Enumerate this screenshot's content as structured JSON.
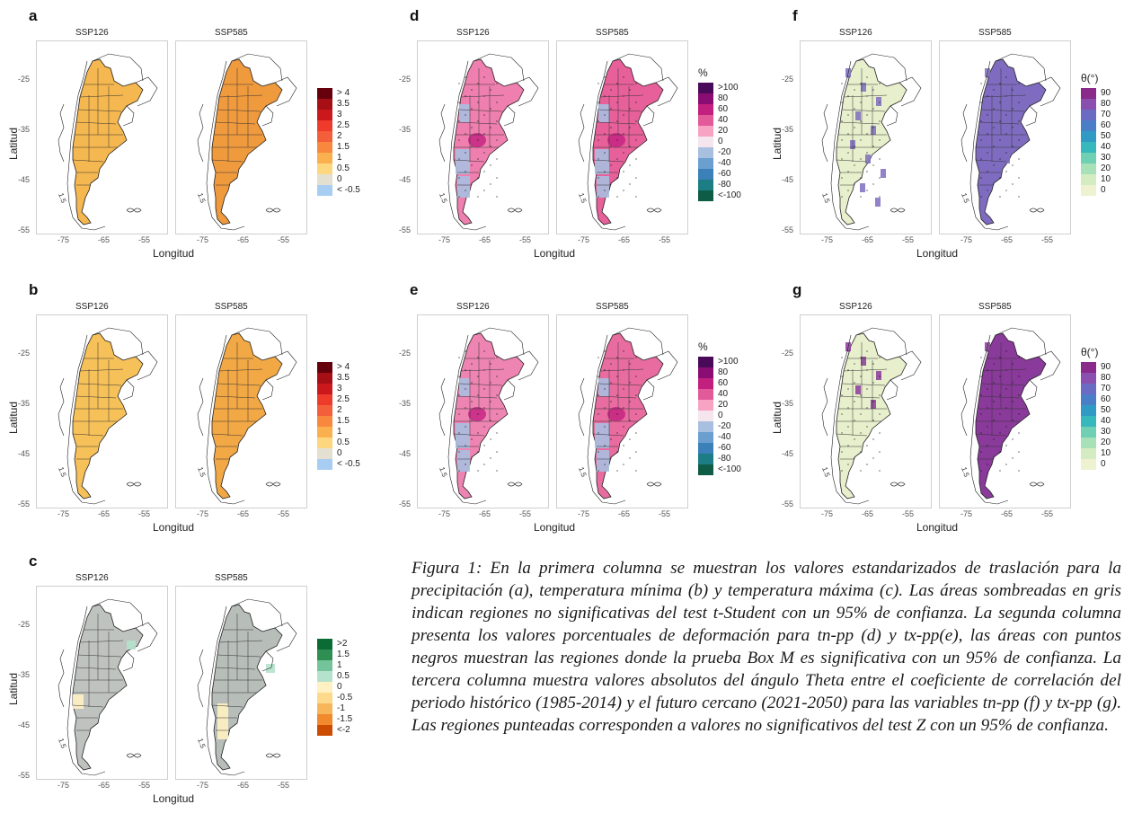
{
  "panels": [
    {
      "id": "a",
      "label": "a",
      "maps": [
        "SSP126",
        "SSP585"
      ],
      "fill": "#f5b74f",
      "fill2": "#f09a3e",
      "grey": false,
      "dots": false,
      "xticks": [
        "-75",
        "-65",
        "-55"
      ],
      "yticks": [
        "-25",
        "-35",
        "-45",
        "-55"
      ],
      "xlabel": "Longitud",
      "ylabel": "Latitud",
      "legend": {
        "title": "",
        "items": [
          {
            "label": "> 4",
            "color": "#67000d"
          },
          {
            "label": "3.5",
            "color": "#a50f15"
          },
          {
            "label": "3",
            "color": "#cb181d"
          },
          {
            "label": "2.5",
            "color": "#ef3b2c"
          },
          {
            "label": "2",
            "color": "#f35f3a"
          },
          {
            "label": "1.5",
            "color": "#f8883d"
          },
          {
            "label": "1",
            "color": "#fbb04f"
          },
          {
            "label": "0.5",
            "color": "#fdd77f"
          },
          {
            "label": "0",
            "color": "#e3e0d2"
          },
          {
            "label": "< -0.5",
            "color": "#a8cdf2"
          }
        ]
      }
    },
    {
      "id": "b",
      "label": "b",
      "maps": [
        "SSP126",
        "SSP585"
      ],
      "fill": "#f7c15a",
      "fill2": "#f2a845",
      "grey": false,
      "dots": false,
      "xticks": [
        "-75",
        "-65",
        "-55"
      ],
      "yticks": [
        "-25",
        "-35",
        "-45",
        "-55"
      ],
      "xlabel": "Longitud",
      "ylabel": "Latitud",
      "legend": {
        "title": "",
        "items": [
          {
            "label": "> 4",
            "color": "#67000d"
          },
          {
            "label": "3.5",
            "color": "#a50f15"
          },
          {
            "label": "3",
            "color": "#cb181d"
          },
          {
            "label": "2.5",
            "color": "#ef3b2c"
          },
          {
            "label": "2",
            "color": "#f35f3a"
          },
          {
            "label": "1.5",
            "color": "#f8883d"
          },
          {
            "label": "1",
            "color": "#fbb04f"
          },
          {
            "label": "0.5",
            "color": "#fdd77f"
          },
          {
            "label": "0",
            "color": "#e3e0d2"
          },
          {
            "label": "< -0.5",
            "color": "#a8cdf2"
          }
        ]
      }
    },
    {
      "id": "c",
      "label": "c",
      "maps": [
        "SSP126",
        "SSP585"
      ],
      "fill": "#bfc3bf",
      "fill2": "#b7bdb8",
      "grey": true,
      "dots": false,
      "xticks": [
        "-75",
        "-65",
        "-55"
      ],
      "yticks": [
        "-25",
        "-35",
        "-45",
        "-55"
      ],
      "xlabel": "Longitud",
      "ylabel": "Latitud",
      "legend": {
        "title": "",
        "items": [
          {
            "label": ">2",
            "color": "#0b6b35"
          },
          {
            "label": "1.5",
            "color": "#2f8f52"
          },
          {
            "label": "1",
            "color": "#74c39a"
          },
          {
            "label": "0.5",
            "color": "#b5e2cc"
          },
          {
            "label": "0",
            "color": "#fff1c2"
          },
          {
            "label": "-0.5",
            "color": "#fdd98c"
          },
          {
            "label": "-1",
            "color": "#f8b65a"
          },
          {
            "label": "-1.5",
            "color": "#f08a2c"
          },
          {
            "label": "<-2",
            "color": "#cc4c02"
          }
        ]
      }
    },
    {
      "id": "d",
      "label": "d",
      "maps": [
        "SSP126",
        "SSP585"
      ],
      "fill": "#ee7fae",
      "fill2": "#e8609a",
      "grey": false,
      "dots": true,
      "xticks": [
        "-75",
        "-65",
        "-55"
      ],
      "yticks": [
        "-25",
        "-35",
        "-45",
        "-55"
      ],
      "xlabel": "Longitud",
      "ylabel": "",
      "legend": {
        "title": "%",
        "items": [
          {
            "label": ">100",
            "color": "#4a0a5a"
          },
          {
            "label": "80",
            "color": "#8a0d73"
          },
          {
            "label": "60",
            "color": "#c2207f"
          },
          {
            "label": "40",
            "color": "#e25a9a"
          },
          {
            "label": "20",
            "color": "#f7a3c1"
          },
          {
            "label": "0",
            "color": "#f5e6ee"
          },
          {
            "label": "-20",
            "color": "#a8bfe0"
          },
          {
            "label": "-40",
            "color": "#6a9fd0"
          },
          {
            "label": "-60",
            "color": "#3b80b8"
          },
          {
            "label": "-80",
            "color": "#1c7e84"
          },
          {
            "label": "<-100",
            "color": "#0e5c46"
          }
        ]
      }
    },
    {
      "id": "e",
      "label": "e",
      "maps": [
        "SSP126",
        "SSP585"
      ],
      "fill": "#ee84b2",
      "fill2": "#e86c9f",
      "grey": false,
      "dots": true,
      "xticks": [
        "-75",
        "-65",
        "-55"
      ],
      "yticks": [
        "-25",
        "-35",
        "-45",
        "-55"
      ],
      "xlabel": "Longitud",
      "ylabel": "",
      "legend": {
        "title": "%",
        "items": [
          {
            "label": ">100",
            "color": "#4a0a5a"
          },
          {
            "label": "80",
            "color": "#8a0d73"
          },
          {
            "label": "60",
            "color": "#c2207f"
          },
          {
            "label": "40",
            "color": "#e25a9a"
          },
          {
            "label": "20",
            "color": "#f7a3c1"
          },
          {
            "label": "0",
            "color": "#f5e6ee"
          },
          {
            "label": "-20",
            "color": "#a8bfe0"
          },
          {
            "label": "-40",
            "color": "#6a9fd0"
          },
          {
            "label": "-60",
            "color": "#3b80b8"
          },
          {
            "label": "-80",
            "color": "#1c7e84"
          },
          {
            "label": "<-100",
            "color": "#0e5c46"
          }
        ]
      }
    },
    {
      "id": "f",
      "label": "f",
      "maps": [
        "SSP126",
        "SSP585"
      ],
      "fill": "#e8efcc",
      "fill2": "#7f6cc0",
      "grey": false,
      "dots": true,
      "xticks": [
        "-75",
        "-65",
        "-55"
      ],
      "yticks": [
        "-25",
        "-35",
        "-45",
        "-55"
      ],
      "xlabel": "Longitud",
      "ylabel": "Latitud",
      "legend": {
        "title": "θ(°)",
        "items": [
          {
            "label": "90",
            "color": "#8a2a8a"
          },
          {
            "label": "80",
            "color": "#8a50b0"
          },
          {
            "label": "70",
            "color": "#6a6cc4"
          },
          {
            "label": "60",
            "color": "#4a7fc8"
          },
          {
            "label": "50",
            "color": "#2f9bc4"
          },
          {
            "label": "40",
            "color": "#37b8bc"
          },
          {
            "label": "30",
            "color": "#6fd0b4"
          },
          {
            "label": "20",
            "color": "#a8e0b8"
          },
          {
            "label": "10",
            "color": "#d5ecc2"
          },
          {
            "label": "0",
            "color": "#eef2d0"
          }
        ]
      }
    },
    {
      "id": "g",
      "label": "g",
      "maps": [
        "SSP126",
        "SSP585"
      ],
      "fill": "#e8efcc",
      "fill2": "#8a3a9a",
      "grey": false,
      "dots": true,
      "xticks": [
        "-75",
        "-65",
        "-55"
      ],
      "yticks": [
        "-25",
        "-35",
        "-45",
        "-55"
      ],
      "xlabel": "Longitud",
      "ylabel": "Latitud",
      "legend": {
        "title": "θ(°)",
        "items": [
          {
            "label": "90",
            "color": "#8a2a8a"
          },
          {
            "label": "80",
            "color": "#8a50b0"
          },
          {
            "label": "70",
            "color": "#6a6cc4"
          },
          {
            "label": "60",
            "color": "#4a7fc8"
          },
          {
            "label": "50",
            "color": "#2f9bc4"
          },
          {
            "label": "40",
            "color": "#37b8bc"
          },
          {
            "label": "30",
            "color": "#6fd0b4"
          },
          {
            "label": "20",
            "color": "#a8e0b8"
          },
          {
            "label": "10",
            "color": "#d5ecc2"
          },
          {
            "label": "0",
            "color": "#eef2d0"
          }
        ]
      }
    }
  ],
  "caption": "Figura 1: En la primera columna se muestran los valores estandarizados de traslación para la precipitación (a), temperatura mínima (b) y temperatura máxima (c). Las áreas sombreadas en gris indican regiones no significativas del test t-Student con un 95% de confianza. La segunda columna presenta los valores porcentuales de deformación para tn-pp (d) y tx-pp(e), las áreas con puntos negros muestran las regiones donde la prueba Box M es significativa con un 95% de confianza. La tercera columna muestra valores absolutos del ángulo Theta entre el coeficiente de correlación del periodo histórico (1985-2014) y el futuro cercano (2021-2050) para las variables tn-pp (f) y tx-pp (g). Las regiones punteadas corresponden a valores no significativos del test Z con un 95% de confianza.",
  "map_annotation": "1.5"
}
